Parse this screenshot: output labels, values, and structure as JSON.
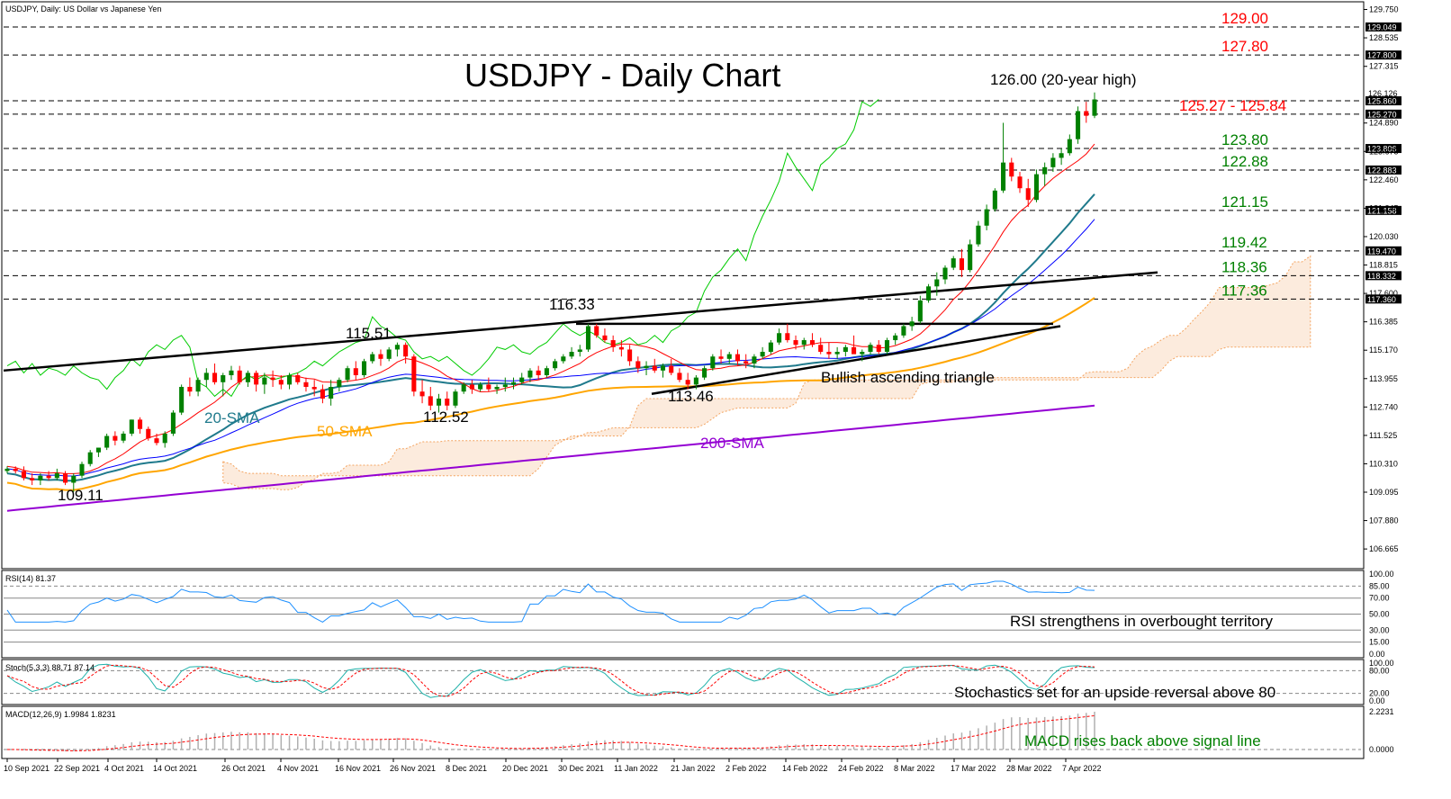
{
  "chart_data": {
    "type": "candlestick",
    "header": "USDJPY, Daily:  US Dollar vs Japanese Yen",
    "title": "USDJPY - Daily Chart",
    "ylim": [
      105.9,
      130.0
    ],
    "y_ticks": [
      "129.750",
      "128.535",
      "127.315",
      "124.890",
      "123.675",
      "122.460",
      "121.245",
      "120.030",
      "118.815",
      "117.600",
      "116.385",
      "115.170",
      "113.955",
      "112.740",
      "111.525",
      "110.310",
      "109.095",
      "107.880",
      "106.665"
    ],
    "x_ticks": [
      "10 Sep 2021",
      "22 Sep 2021",
      "4 Oct 2021",
      "14 Oct 2021",
      "26 Oct 2021",
      "4 Nov 2021",
      "16 Nov 2021",
      "26 Nov 2021",
      "8 Dec 2021",
      "20 Dec 2021",
      "30 Dec 2021",
      "11 Jan 2022",
      "21 Jan 2022",
      "2 Feb 2022",
      "14 Feb 2022",
      "24 Feb 2022",
      "8 Mar 2022",
      "17 Mar 2022",
      "28 Mar 2022",
      "7 Apr 2022"
    ],
    "levels": [
      {
        "value": 129.0,
        "label": "129.00",
        "tag": "129.049",
        "color": "#ff0000"
      },
      {
        "value": 127.8,
        "label": "127.80",
        "tag": "127.800",
        "color": "#ff0000"
      },
      {
        "value": 125.84,
        "label": "",
        "tag": "125.860",
        "color": "#ff0000"
      },
      {
        "value": 125.27,
        "label": "125.27 - 125.84",
        "tag": "125.270",
        "color": "#ff0000"
      },
      {
        "value": 123.8,
        "label": "123.80",
        "tag": "123.806",
        "color": "#008000"
      },
      {
        "value": 122.88,
        "label": "122.88",
        "tag": "122.883",
        "color": "#008000"
      },
      {
        "value": 121.15,
        "label": "121.15",
        "tag": "121.158",
        "color": "#008000"
      },
      {
        "value": 119.42,
        "label": "119.42",
        "tag": "119.470",
        "color": "#008000"
      },
      {
        "value": 118.36,
        "label": "118.36",
        "tag": "118.332",
        "color": "#008000"
      },
      {
        "value": 117.36,
        "label": "117.36",
        "tag": "117.360",
        "color": "#008000"
      }
    ],
    "price_tag_top": "126.126",
    "candles_ohlc": [
      [
        110.0,
        110.2,
        109.9,
        110.1
      ],
      [
        110.1,
        110.2,
        109.9,
        110.0
      ],
      [
        110.0,
        110.2,
        109.6,
        109.7
      ],
      [
        109.7,
        109.9,
        109.4,
        109.6
      ],
      [
        109.6,
        109.9,
        109.4,
        109.8
      ],
      [
        109.8,
        110.0,
        109.6,
        109.7
      ],
      [
        109.7,
        110.1,
        109.6,
        109.9
      ],
      [
        109.9,
        110.0,
        109.4,
        109.5
      ],
      [
        109.5,
        109.9,
        109.1,
        109.8
      ],
      [
        109.8,
        110.4,
        109.7,
        110.3
      ],
      [
        110.3,
        110.9,
        110.2,
        110.8
      ],
      [
        110.8,
        111.0,
        110.6,
        111.0
      ],
      [
        111.0,
        111.6,
        110.9,
        111.5
      ],
      [
        111.5,
        111.7,
        111.1,
        111.3
      ],
      [
        111.3,
        111.7,
        111.2,
        111.6
      ],
      [
        111.6,
        112.2,
        111.5,
        112.2
      ],
      [
        112.2,
        112.3,
        111.6,
        111.8
      ],
      [
        111.8,
        111.9,
        111.3,
        111.4
      ],
      [
        111.4,
        111.6,
        111.1,
        111.2
      ],
      [
        111.2,
        111.7,
        111.0,
        111.6
      ],
      [
        111.6,
        112.6,
        111.5,
        112.5
      ],
      [
        112.5,
        113.7,
        112.4,
        113.6
      ],
      [
        113.6,
        114.0,
        113.2,
        113.4
      ],
      [
        113.4,
        114.0,
        113.2,
        113.9
      ],
      [
        113.9,
        114.4,
        113.6,
        114.2
      ],
      [
        114.2,
        114.6,
        113.7,
        113.8
      ],
      [
        113.8,
        114.2,
        113.2,
        114.1
      ],
      [
        114.1,
        114.5,
        113.9,
        114.3
      ],
      [
        114.3,
        114.5,
        113.7,
        113.8
      ],
      [
        113.8,
        114.3,
        113.6,
        114.2
      ],
      [
        114.2,
        114.3,
        113.4,
        113.7
      ],
      [
        113.7,
        114.2,
        113.3,
        114.0
      ],
      [
        114.0,
        114.3,
        113.6,
        113.9
      ],
      [
        113.9,
        114.1,
        113.5,
        113.7
      ],
      [
        113.7,
        114.2,
        113.5,
        114.1
      ],
      [
        114.1,
        114.2,
        113.7,
        113.8
      ],
      [
        113.8,
        114.0,
        113.4,
        113.6
      ],
      [
        113.6,
        113.9,
        113.2,
        113.5
      ],
      [
        113.5,
        113.7,
        112.9,
        113.1
      ],
      [
        113.1,
        113.9,
        112.8,
        113.6
      ],
      [
        113.6,
        114.0,
        113.4,
        113.9
      ],
      [
        113.9,
        114.5,
        113.8,
        114.4
      ],
      [
        114.4,
        114.7,
        113.9,
        114.1
      ],
      [
        114.1,
        114.8,
        114.0,
        114.7
      ],
      [
        114.7,
        115.1,
        114.6,
        115.0
      ],
      [
        115.0,
        115.2,
        114.5,
        114.8
      ],
      [
        114.8,
        115.3,
        114.7,
        115.2
      ],
      [
        115.2,
        115.5,
        114.9,
        115.4
      ],
      [
        115.4,
        115.5,
        114.6,
        114.9
      ],
      [
        114.9,
        115.0,
        113.2,
        113.4
      ],
      [
        113.4,
        113.9,
        112.9,
        113.2
      ],
      [
        113.2,
        113.6,
        112.6,
        112.8
      ],
      [
        112.8,
        113.3,
        112.5,
        113.1
      ],
      [
        113.1,
        113.4,
        112.6,
        112.8
      ],
      [
        112.8,
        113.5,
        112.7,
        113.4
      ],
      [
        113.4,
        113.8,
        113.3,
        113.7
      ],
      [
        113.7,
        113.9,
        113.3,
        113.5
      ],
      [
        113.5,
        113.8,
        113.4,
        113.7
      ],
      [
        113.7,
        114.0,
        113.4,
        113.5
      ],
      [
        113.5,
        113.7,
        113.3,
        113.6
      ],
      [
        113.6,
        114.0,
        113.4,
        113.7
      ],
      [
        113.7,
        114.0,
        113.5,
        113.8
      ],
      [
        113.8,
        114.2,
        113.7,
        114.0
      ],
      [
        114.0,
        114.4,
        113.8,
        114.3
      ],
      [
        114.3,
        114.5,
        113.9,
        114.1
      ],
      [
        114.1,
        114.5,
        114.0,
        114.4
      ],
      [
        114.4,
        114.8,
        114.3,
        114.7
      ],
      [
        114.7,
        115.0,
        114.6,
        114.9
      ],
      [
        114.9,
        115.3,
        114.8,
        115.1
      ],
      [
        115.1,
        115.4,
        114.9,
        115.2
      ],
      [
        115.2,
        116.3,
        115.1,
        116.2
      ],
      [
        116.2,
        116.3,
        115.7,
        115.8
      ],
      [
        115.8,
        116.1,
        115.5,
        115.6
      ],
      [
        115.6,
        115.8,
        115.1,
        115.3
      ],
      [
        115.3,
        115.6,
        114.9,
        115.2
      ],
      [
        115.2,
        115.4,
        114.5,
        114.7
      ],
      [
        114.7,
        114.9,
        114.2,
        114.4
      ],
      [
        114.4,
        114.7,
        114.1,
        114.5
      ],
      [
        114.5,
        114.8,
        114.2,
        114.3
      ],
      [
        114.3,
        114.6,
        114.0,
        114.5
      ],
      [
        114.5,
        114.8,
        114.1,
        114.2
      ],
      [
        114.2,
        114.4,
        113.8,
        113.9
      ],
      [
        113.9,
        114.2,
        113.5,
        113.7
      ],
      [
        113.7,
        114.1,
        113.5,
        114.0
      ],
      [
        114.0,
        114.5,
        113.9,
        114.4
      ],
      [
        114.4,
        115.0,
        114.3,
        114.9
      ],
      [
        114.9,
        115.2,
        114.6,
        114.8
      ],
      [
        114.8,
        115.1,
        114.6,
        115.0
      ],
      [
        115.0,
        115.2,
        114.5,
        114.7
      ],
      [
        114.7,
        115.0,
        114.4,
        114.6
      ],
      [
        114.6,
        115.0,
        114.4,
        114.9
      ],
      [
        114.9,
        115.3,
        114.8,
        115.1
      ],
      [
        115.1,
        115.6,
        115.0,
        115.5
      ],
      [
        115.5,
        116.1,
        115.4,
        115.9
      ],
      [
        115.9,
        116.3,
        115.5,
        115.6
      ],
      [
        115.6,
        115.8,
        115.2,
        115.4
      ],
      [
        115.4,
        115.7,
        115.2,
        115.6
      ],
      [
        115.6,
        115.9,
        115.3,
        115.4
      ],
      [
        115.4,
        115.7,
        115.0,
        115.1
      ],
      [
        115.1,
        115.5,
        114.8,
        115.0
      ],
      [
        115.0,
        115.3,
        114.8,
        115.1
      ],
      [
        115.1,
        115.4,
        114.9,
        115.3
      ],
      [
        115.3,
        115.8,
        115.2,
        115.0
      ],
      [
        115.0,
        115.2,
        114.7,
        115.1
      ],
      [
        115.1,
        115.5,
        115.0,
        115.4
      ],
      [
        115.4,
        115.6,
        115.0,
        115.1
      ],
      [
        115.1,
        115.7,
        115.0,
        115.6
      ],
      [
        115.6,
        115.9,
        115.4,
        115.8
      ],
      [
        115.8,
        116.3,
        115.7,
        116.2
      ],
      [
        116.2,
        116.6,
        116.0,
        116.4
      ],
      [
        116.4,
        117.5,
        116.3,
        117.3
      ],
      [
        117.3,
        118.0,
        117.2,
        117.9
      ],
      [
        117.9,
        118.5,
        117.5,
        118.2
      ],
      [
        118.2,
        118.8,
        118.0,
        118.7
      ],
      [
        118.7,
        119.2,
        118.6,
        119.1
      ],
      [
        119.1,
        119.5,
        118.3,
        118.6
      ],
      [
        118.6,
        119.9,
        118.5,
        119.7
      ],
      [
        119.7,
        120.7,
        119.6,
        120.5
      ],
      [
        120.5,
        121.4,
        120.3,
        121.2
      ],
      [
        121.2,
        122.1,
        121.1,
        122.0
      ],
      [
        122.0,
        124.9,
        121.9,
        123.2
      ],
      [
        123.2,
        123.4,
        122.4,
        122.6
      ],
      [
        122.6,
        122.8,
        121.9,
        122.1
      ],
      [
        122.1,
        122.5,
        121.3,
        121.6
      ],
      [
        121.6,
        122.9,
        121.5,
        122.7
      ],
      [
        122.7,
        123.2,
        122.2,
        123.0
      ],
      [
        123.0,
        123.6,
        122.8,
        123.4
      ],
      [
        123.4,
        123.8,
        123.1,
        123.6
      ],
      [
        123.6,
        124.4,
        123.5,
        124.2
      ],
      [
        124.2,
        125.6,
        124.0,
        125.4
      ],
      [
        125.4,
        125.8,
        124.9,
        125.2
      ],
      [
        125.2,
        126.2,
        125.1,
        125.9
      ]
    ],
    "annotations": [
      "126.00 (20-year high)",
      "116.33",
      "115.51",
      "112.52",
      "113.46",
      "109.11",
      "Bullish ascending triangle",
      "20-SMA",
      "50-SMA",
      "200-SMA"
    ],
    "indicators": [
      {
        "name": "RSI(14) 81.37",
        "note": "RSI strengthens in overbought territory",
        "ticks": [
          "100.00",
          "85.00",
          "70.00",
          "50.00",
          "30.00",
          "15.00",
          "0.00"
        ]
      },
      {
        "name": "Stoch(5,3,3) 88.71 87.14",
        "note": "Stochastics set for an upside reversal above 80",
        "ticks": [
          "100.00",
          "80.00",
          "20.00",
          "0.00"
        ]
      },
      {
        "name": "MACD(12,26,9) 1.9984 1.8231",
        "note": "MACD rises back above signal line",
        "ticks": [
          "2.2231",
          "0.0000"
        ]
      }
    ],
    "colors": {
      "sma20": "#1f7a8c",
      "sma50": "#ffa500",
      "sma200": "#9400d3",
      "tenkan": "#ff0000",
      "kijun": "#0000ff",
      "chikou": "#00cc00",
      "cloud": "#f4a460",
      "bull": "#008000",
      "bear": "#ff0000"
    }
  }
}
